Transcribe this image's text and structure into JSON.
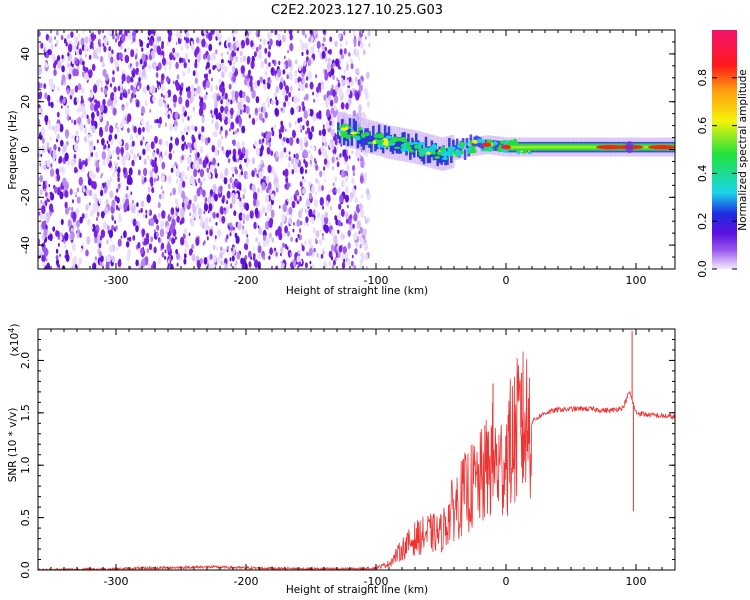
{
  "title": "C2E2.2023.127.10.25.G03",
  "chart_data": [
    {
      "type": "heatmap",
      "xlabel": "Height of straight line (km)",
      "ylabel": "Frequency (Hz)",
      "xlim": [
        -360,
        130
      ],
      "ylim": [
        -50,
        50
      ],
      "xticks": [
        -300,
        -200,
        -100,
        0,
        100
      ],
      "yticks": [
        -40,
        -20,
        0,
        20,
        40
      ],
      "signal_band": {
        "description": "narrow frequency band near 0 Hz",
        "start_km": -130,
        "end_km": 130,
        "center_hz": [
          [
            -130,
            9
          ],
          [
            -110,
            6
          ],
          [
            -90,
            3
          ],
          [
            -70,
            1
          ],
          [
            -50,
            -2
          ],
          [
            -30,
            1
          ],
          [
            -15,
            2
          ],
          [
            0,
            1
          ],
          [
            50,
            1
          ],
          [
            100,
            1
          ],
          [
            130,
            1
          ]
        ],
        "peak_amplitude_near_km": [
          -15,
          0,
          80,
          95,
          120
        ]
      },
      "noise_region": {
        "start_km": -360,
        "end_km": -105,
        "freq_range_hz": [
          -50,
          50
        ]
      },
      "colorbar": {
        "label": "Normalized spectral amplitude",
        "range": [
          0,
          1
        ],
        "ticks": [
          0.0,
          0.2,
          0.4,
          0.6,
          0.8
        ]
      },
      "colors": {
        "low": "#e9ddfb",
        "mid": "#7b21e6",
        "blue": "#1f2dd6",
        "cyan": "#16d2e0",
        "green": "#22dd3c",
        "yellow": "#f4f20c",
        "red": "#ff1e1e"
      }
    },
    {
      "type": "line",
      "xlabel": "Height of straight line (km)",
      "ylabel": "SNR (10 * v/v)",
      "scale_label": "(x10",
      "scale_exp": "4",
      "scale_close": ")",
      "xlim": [
        -360,
        130
      ],
      "ylim": [
        0,
        2.3
      ],
      "xticks": [
        -300,
        -200,
        -100,
        0,
        100
      ],
      "yticks": [
        0.0,
        0.5,
        1.0,
        1.5,
        2.0
      ],
      "color": "#ee3333",
      "series": [
        {
          "name": "SNR",
          "x": [
            -360,
            -300,
            -230,
            -200,
            -150,
            -110,
            -100,
            -90,
            -80,
            -70,
            -60,
            -50,
            -40,
            -30,
            -20,
            -10,
            -5,
            0,
            10,
            20,
            30,
            40,
            60,
            80,
            90,
            95,
            100,
            110,
            130
          ],
          "values": [
            0.0,
            0.01,
            0.03,
            0.02,
            0.01,
            0.01,
            0.02,
            0.06,
            0.2,
            0.3,
            0.35,
            0.35,
            0.6,
            0.75,
            0.85,
            1.05,
            0.95,
            1.1,
            1.35,
            1.42,
            1.5,
            1.53,
            1.54,
            1.52,
            1.55,
            1.7,
            1.5,
            1.48,
            1.46
          ]
        }
      ],
      "spikes": [
        {
          "x": -10,
          "value": 1.78
        },
        {
          "x": 12,
          "value": 1.88
        },
        {
          "x": 97,
          "value": 2.28
        },
        {
          "x": 98,
          "value": 0.56
        }
      ]
    }
  ]
}
